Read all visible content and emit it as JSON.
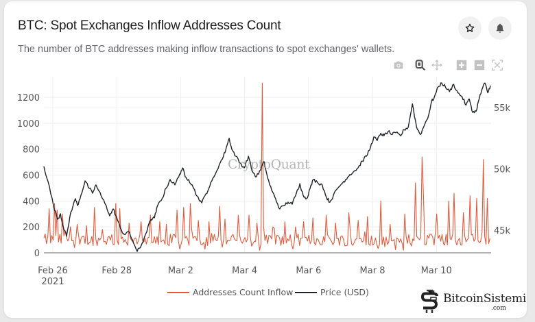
{
  "header": {
    "title": "BTC: Spot Exchanges Inflow Addresses Count",
    "subtitle": "The number of BTC addresses making inflow transactions to spot exchanges' wallets.",
    "star_icon": "star-icon",
    "bell_icon": "bell-icon"
  },
  "modebar": {
    "icons": [
      "camera-icon",
      "zoom-icon",
      "pan-icon",
      "zoom-in-icon",
      "zoom-out-icon",
      "autoscale-icon"
    ]
  },
  "watermark": "CryptoQuant",
  "brand_logo": {
    "name": "BitcoinSistemi",
    "suffix": ".com"
  },
  "colors": {
    "inflow": "#e05a3a",
    "price": "#1e2329",
    "grid": "#eeeeee",
    "axis_text": "#555555",
    "zero_line": "#999999"
  },
  "chart_data": {
    "type": "line",
    "title": "BTC: Spot Exchanges Inflow Addresses Count",
    "x_unit": "days since 2021-02-26",
    "x_range": [
      -0.28,
      13.7
    ],
    "x_ticks": [
      {
        "day": 0,
        "label": "Feb 26",
        "sublabel": "2021"
      },
      {
        "day": 2,
        "label": "Feb 28"
      },
      {
        "day": 4,
        "label": "Mar 2"
      },
      {
        "day": 6,
        "label": "Mar 4"
      },
      {
        "day": 8,
        "label": "Mar 6"
      },
      {
        "day": 10,
        "label": "Mar 8"
      },
      {
        "day": 12,
        "label": "Mar 10"
      }
    ],
    "y_left": {
      "range": [
        0,
        1330
      ],
      "ticks": [
        0,
        200,
        400,
        600,
        800,
        1000,
        1200
      ],
      "label": ""
    },
    "y_right": {
      "range": [
        43200,
        57900
      ],
      "ticks": [
        45000,
        50000,
        55000
      ],
      "tick_labels": [
        "45k",
        "50k",
        "55k"
      ],
      "label": ""
    },
    "grid": true,
    "legend": {
      "placement": "bottom-center"
    },
    "series": [
      {
        "name": "Addresses Count Inflow",
        "axis": "left",
        "color": "#e05a3a",
        "baseline": 100,
        "noise_range": [
          20,
          200
        ],
        "spikes": [
          [
            -0.1,
            340
          ],
          [
            0.05,
            380
          ],
          [
            0.15,
            330
          ],
          [
            0.3,
            300
          ],
          [
            0.55,
            200
          ],
          [
            0.75,
            220
          ],
          [
            1.05,
            210
          ],
          [
            1.3,
            350
          ],
          [
            1.55,
            180
          ],
          [
            1.95,
            380
          ],
          [
            2.1,
            340
          ],
          [
            2.4,
            230
          ],
          [
            2.75,
            240
          ],
          [
            3.05,
            290
          ],
          [
            3.35,
            240
          ],
          [
            3.55,
            220
          ],
          [
            3.9,
            330
          ],
          [
            4.1,
            350
          ],
          [
            4.3,
            380
          ],
          [
            4.55,
            250
          ],
          [
            4.9,
            240
          ],
          [
            5.2,
            360
          ],
          [
            5.4,
            260
          ],
          [
            5.8,
            290
          ],
          [
            6.15,
            290
          ],
          [
            6.4,
            230
          ],
          [
            6.55,
            1310
          ],
          [
            6.9,
            200
          ],
          [
            7.25,
            240
          ],
          [
            7.6,
            200
          ],
          [
            7.85,
            240
          ],
          [
            8.15,
            270
          ],
          [
            8.55,
            290
          ],
          [
            8.85,
            230
          ],
          [
            9.25,
            310
          ],
          [
            9.55,
            250
          ],
          [
            9.85,
            280
          ],
          [
            10.25,
            400
          ],
          [
            10.55,
            220
          ],
          [
            11.0,
            300
          ],
          [
            11.35,
            540
          ],
          [
            11.55,
            740
          ],
          [
            11.6,
            460
          ],
          [
            12.0,
            300
          ],
          [
            12.4,
            400
          ],
          [
            12.55,
            460
          ],
          [
            12.85,
            310
          ],
          [
            13.05,
            440
          ],
          [
            13.25,
            420
          ],
          [
            13.45,
            720
          ],
          [
            13.6,
            420
          ]
        ],
        "note": "hourly values between spikes fluctuate ~20-200 around baseline ~100"
      },
      {
        "name": "Price (USD)",
        "axis": "right",
        "color": "#1e2329",
        "points": [
          [
            -0.28,
            50200
          ],
          [
            -0.15,
            48970
          ],
          [
            0.02,
            47010
          ],
          [
            0.15,
            45890
          ],
          [
            0.24,
            46340
          ],
          [
            0.32,
            45340
          ],
          [
            0.43,
            44500
          ],
          [
            0.56,
            46450
          ],
          [
            0.71,
            47570
          ],
          [
            0.77,
            47010
          ],
          [
            0.88,
            47850
          ],
          [
            1.01,
            49020
          ],
          [
            1.14,
            48410
          ],
          [
            1.24,
            48020
          ],
          [
            1.35,
            48690
          ],
          [
            1.52,
            47740
          ],
          [
            1.67,
            47010
          ],
          [
            1.78,
            46170
          ],
          [
            1.89,
            46730
          ],
          [
            2.0,
            46010
          ],
          [
            2.12,
            45110
          ],
          [
            2.23,
            44660
          ],
          [
            2.36,
            44890
          ],
          [
            2.49,
            44220
          ],
          [
            2.64,
            43270
          ],
          [
            2.75,
            43660
          ],
          [
            2.9,
            44660
          ],
          [
            3.07,
            45890
          ],
          [
            3.18,
            46010
          ],
          [
            3.28,
            47010
          ],
          [
            3.43,
            47630
          ],
          [
            3.54,
            48410
          ],
          [
            3.67,
            49130
          ],
          [
            3.82,
            48690
          ],
          [
            3.97,
            49580
          ],
          [
            4.06,
            50080
          ],
          [
            4.14,
            49360
          ],
          [
            4.25,
            49130
          ],
          [
            4.36,
            48690
          ],
          [
            4.51,
            47790
          ],
          [
            4.66,
            47230
          ],
          [
            4.79,
            47960
          ],
          [
            4.91,
            48580
          ],
          [
            5.04,
            49360
          ],
          [
            5.21,
            50360
          ],
          [
            5.34,
            51030
          ],
          [
            5.43,
            51760
          ],
          [
            5.52,
            52490
          ],
          [
            5.6,
            51590
          ],
          [
            5.73,
            51030
          ],
          [
            5.86,
            50470
          ],
          [
            5.99,
            50080
          ],
          [
            6.12,
            51030
          ],
          [
            6.24,
            49800
          ],
          [
            6.37,
            49360
          ],
          [
            6.5,
            49910
          ],
          [
            6.61,
            50590
          ],
          [
            6.72,
            49250
          ],
          [
            6.85,
            48240
          ],
          [
            6.97,
            47570
          ],
          [
            7.1,
            46730
          ],
          [
            7.23,
            47010
          ],
          [
            7.36,
            47290
          ],
          [
            7.49,
            47120
          ],
          [
            7.62,
            48020
          ],
          [
            7.73,
            48800
          ],
          [
            7.83,
            47850
          ],
          [
            7.94,
            47570
          ],
          [
            8.05,
            48410
          ],
          [
            8.15,
            49130
          ],
          [
            8.28,
            48910
          ],
          [
            8.43,
            48690
          ],
          [
            8.56,
            47680
          ],
          [
            8.67,
            47290
          ],
          [
            8.78,
            47850
          ],
          [
            8.91,
            48410
          ],
          [
            9.04,
            48800
          ],
          [
            9.16,
            49130
          ],
          [
            9.29,
            49530
          ],
          [
            9.42,
            49800
          ],
          [
            9.55,
            50080
          ],
          [
            9.68,
            50640
          ],
          [
            9.81,
            51030
          ],
          [
            9.94,
            51760
          ],
          [
            10.04,
            52600
          ],
          [
            10.15,
            52320
          ],
          [
            10.26,
            52900
          ],
          [
            10.36,
            52700
          ],
          [
            10.49,
            53050
          ],
          [
            10.62,
            52800
          ],
          [
            10.73,
            52950
          ],
          [
            10.88,
            52700
          ],
          [
            10.99,
            53200
          ],
          [
            11.12,
            53400
          ],
          [
            11.25,
            55300
          ],
          [
            11.38,
            53400
          ],
          [
            11.5,
            52800
          ],
          [
            11.63,
            53600
          ],
          [
            11.76,
            54400
          ],
          [
            11.85,
            55500
          ],
          [
            11.93,
            55800
          ],
          [
            12.06,
            56700
          ],
          [
            12.17,
            57000
          ],
          [
            12.28,
            56700
          ],
          [
            12.41,
            56300
          ],
          [
            12.54,
            56900
          ],
          [
            12.67,
            56200
          ],
          [
            12.8,
            55900
          ],
          [
            12.93,
            55200
          ],
          [
            13.03,
            55700
          ],
          [
            13.14,
            54600
          ],
          [
            13.24,
            54700
          ],
          [
            13.35,
            55800
          ],
          [
            13.43,
            56500
          ],
          [
            13.52,
            57000
          ],
          [
            13.61,
            56200
          ],
          [
            13.69,
            56800
          ]
        ]
      }
    ]
  }
}
